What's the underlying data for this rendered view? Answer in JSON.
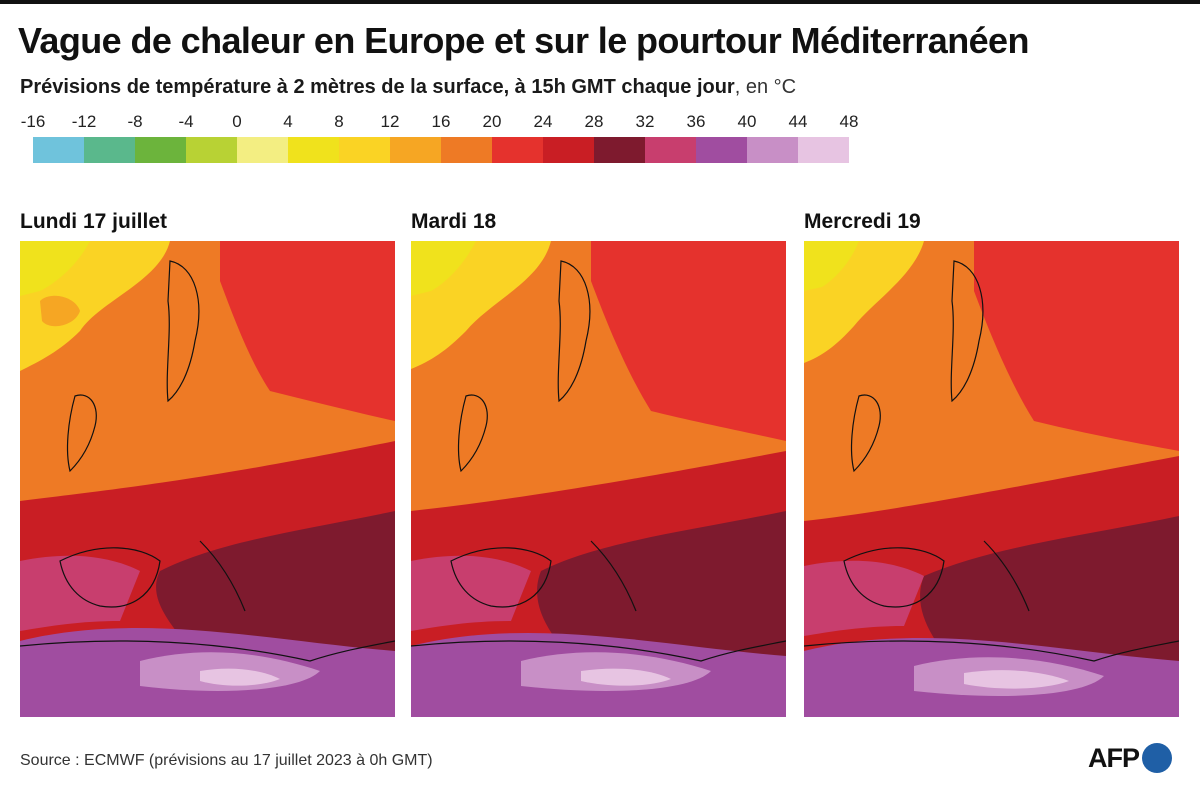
{
  "title": "Vague de chaleur en Europe et sur le pourtour Méditerranéen",
  "subtitle": {
    "main": "Prévisions de température à 2 mètres de la surface, à 15h GMT chaque jour",
    "unit": ", en °C"
  },
  "legend": {
    "ticks": [
      "-16",
      "-12",
      "-8",
      "-4",
      "0",
      "4",
      "8",
      "12",
      "16",
      "20",
      "24",
      "28",
      "32",
      "36",
      "40",
      "44",
      "48"
    ],
    "colors": [
      "#6fc3dc",
      "#5ab88c",
      "#6cb43c",
      "#b8d234",
      "#f3ee82",
      "#f0e21c",
      "#fad324",
      "#f6a623",
      "#ee7a25",
      "#e5322d",
      "#c91e24",
      "#7e1a2e",
      "#c83e6e",
      "#a04da0",
      "#c88fc6",
      "#e7c4e2"
    ]
  },
  "panels": [
    {
      "label": "Lundi 17 juillet",
      "map_alt": "Carte de Europe, lundi 17 juillet"
    },
    {
      "label": "Mardi 18",
      "map_alt": "Carte de Europe, mardi 18"
    },
    {
      "label": "Mercredi 19",
      "map_alt": "Carte de Europe, mercredi 19"
    }
  ],
  "source": "Source : ECMWF (prévisions au 17 juillet 2023 à 0h GMT)",
  "logo": {
    "text": "AFP"
  },
  "colors": {
    "logo_dot": "#1f5fa6"
  }
}
